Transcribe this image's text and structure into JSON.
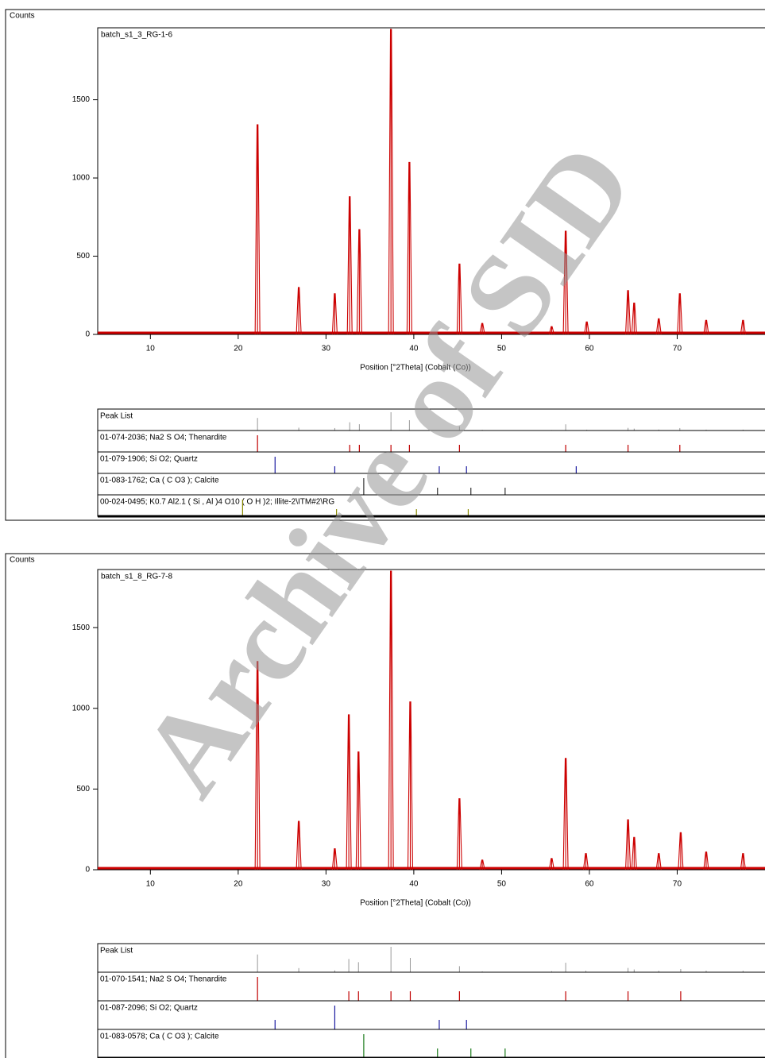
{
  "watermark": "Archive of SID",
  "chart_data": [
    {
      "type": "peaks",
      "y_label": "Counts",
      "x_label": "Position [°2Theta] (Cobalt (Co))",
      "xlim": [
        4,
        80
      ],
      "xticks": [
        10,
        20,
        30,
        40,
        50,
        60,
        70
      ],
      "ylim": [
        0,
        1960
      ],
      "yticks": [
        0,
        500,
        1000,
        1500
      ],
      "series": [
        {
          "name": "batch_s1_3_RG-1-6",
          "color": "#cc0000",
          "x": [
            22.2,
            26.9,
            31.0,
            32.7,
            33.8,
            37.4,
            39.5,
            45.2,
            47.8,
            55.7,
            57.3,
            59.7,
            64.4,
            65.1,
            67.9,
            70.3,
            73.3,
            77.5
          ],
          "values": [
            1340,
            300,
            260,
            880,
            670,
            1950,
            1100,
            450,
            70,
            50,
            660,
            80,
            280,
            200,
            100,
            260,
            90,
            90
          ]
        }
      ],
      "peak_list": {
        "title": "Peak List",
        "patterns": [
          {
            "name": "01-074-2036; Na2 S O4; Thenardite",
            "color": "#c00000",
            "positions": [
              22.2,
              32.7,
              33.8,
              37.4,
              39.5,
              45.2,
              57.3,
              64.4,
              70.3
            ]
          },
          {
            "name": "01-079-1906; Si O2; Quartz",
            "color": "#1a1aa0",
            "positions": [
              24.2,
              31.0,
              42.9,
              46.0,
              58.5
            ]
          },
          {
            "name": "01-083-1762; Ca ( C O3 ); Calcite",
            "color": "#333333",
            "positions": [
              34.3,
              42.7,
              46.5,
              50.4
            ]
          },
          {
            "name": "00-024-0495; K0.7 Al2.1 ( Si , Al )4 O10 ( O H )2; Illite-2\\ITM#2\\RG",
            "color": "#8a8a00",
            "positions": [
              20.5,
              31.2,
              40.3,
              46.2
            ]
          }
        ]
      }
    },
    {
      "type": "peaks",
      "y_label": "Counts",
      "x_label": "Position [°2Theta] (Cobalt (Co))",
      "xlim": [
        4,
        80
      ],
      "xticks": [
        10,
        20,
        30,
        40,
        50,
        60,
        70
      ],
      "ylim": [
        0,
        1860
      ],
      "yticks": [
        0,
        500,
        1000,
        1500
      ],
      "series": [
        {
          "name": "batch_s1_8_RG-7-8",
          "color": "#cc0000",
          "x": [
            22.2,
            26.9,
            31.0,
            32.6,
            33.7,
            37.4,
            39.6,
            45.2,
            47.8,
            55.7,
            57.3,
            59.6,
            64.4,
            65.1,
            67.9,
            70.4,
            73.3,
            77.5
          ],
          "values": [
            1290,
            300,
            130,
            960,
            730,
            1850,
            1040,
            440,
            60,
            70,
            690,
            100,
            310,
            200,
            100,
            230,
            110,
            100
          ]
        }
      ],
      "peak_list": {
        "title": "Peak List",
        "patterns": [
          {
            "name": "01-070-1541; Na2 S O4; Thenardite",
            "color": "#c00000",
            "positions": [
              22.2,
              32.6,
              33.7,
              37.4,
              39.6,
              45.2,
              57.3,
              64.4,
              70.4
            ]
          },
          {
            "name": "01-087-2096; Si O2; Quartz",
            "color": "#1a1aa0",
            "positions": [
              31.0,
              24.2,
              42.9,
              46.0
            ]
          },
          {
            "name": "01-083-0578; Ca ( C O3 ); Calcite",
            "color": "#1a7a1a",
            "positions": [
              34.3,
              42.7,
              46.5,
              50.4
            ]
          }
        ]
      }
    }
  ]
}
